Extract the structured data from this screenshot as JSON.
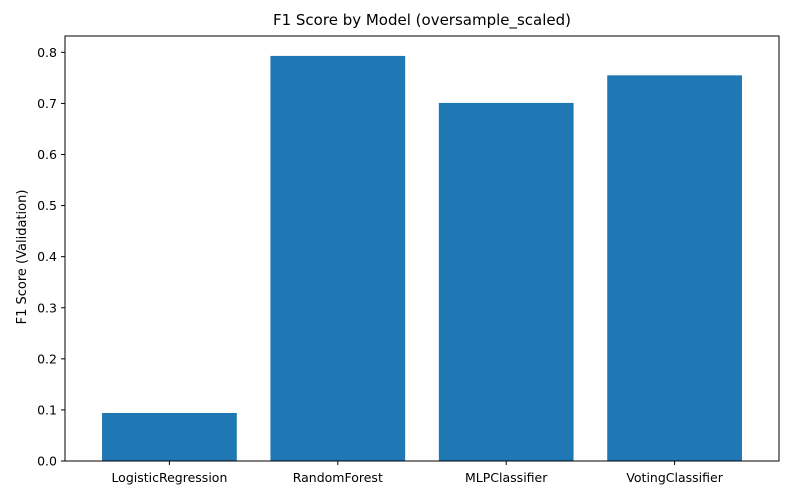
{
  "chart_data": {
    "type": "bar",
    "title": "F1 Score by Model (oversample_scaled)",
    "xlabel": "",
    "ylabel": "F1 Score (Validation)",
    "categories": [
      "LogisticRegression",
      "RandomForest",
      "MLPClassifier",
      "VotingClassifier"
    ],
    "values": [
      0.094,
      0.793,
      0.701,
      0.755
    ],
    "ylim": [
      0,
      0.832
    ],
    "yticks": [
      "0.0",
      "0.1",
      "0.2",
      "0.3",
      "0.4",
      "0.5",
      "0.6",
      "0.7",
      "0.8"
    ],
    "bar_color": "#1f77b4",
    "grid": false,
    "legend": "none"
  }
}
